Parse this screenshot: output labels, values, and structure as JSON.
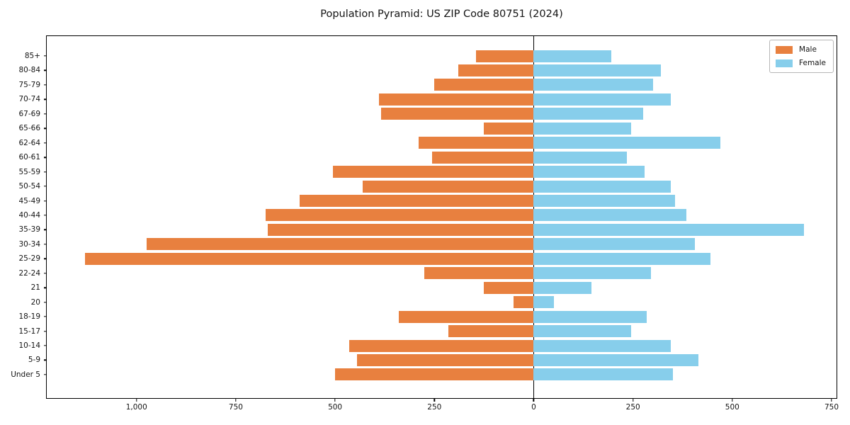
{
  "title": "Population Pyramid: US ZIP Code 80751 (2024)",
  "legend": {
    "male_label": "Male",
    "female_label": "Female"
  },
  "colors": {
    "male": "#e8803f",
    "female": "#87ceeb",
    "axis": "#000000",
    "background": "#ffffff"
  },
  "chart_data": {
    "type": "bar",
    "subtype": "population-pyramid",
    "orientation": "horizontal",
    "title": "Population Pyramid: US ZIP Code 80751 (2024)",
    "categories_top_to_bottom": [
      "85+",
      "80-84",
      "75-79",
      "70-74",
      "67-69",
      "65-66",
      "62-64",
      "60-61",
      "55-59",
      "50-54",
      "45-49",
      "40-44",
      "35-39",
      "30-34",
      "25-29",
      "22-24",
      "21",
      "20",
      "18-19",
      "15-17",
      "10-14",
      "5-9",
      "Under 5"
    ],
    "series": [
      {
        "name": "Male",
        "side": "left",
        "color": "#e8803f",
        "values": [
          145,
          190,
          250,
          390,
          385,
          125,
          290,
          255,
          505,
          430,
          590,
          675,
          670,
          975,
          1130,
          275,
          125,
          50,
          340,
          215,
          465,
          445,
          500
        ]
      },
      {
        "name": "Female",
        "side": "right",
        "color": "#87ceeb",
        "values": [
          195,
          320,
          300,
          345,
          275,
          245,
          470,
          235,
          280,
          345,
          355,
          385,
          680,
          405,
          445,
          295,
          145,
          50,
          285,
          245,
          345,
          415,
          350
        ]
      }
    ],
    "x_tick_values": [
      -1000,
      -750,
      -500,
      -250,
      0,
      250,
      500,
      750
    ],
    "x_tick_labels": [
      "1,000",
      "750",
      "500",
      "250",
      "0",
      "250",
      "500",
      "750"
    ],
    "xlim": [
      -1226,
      766
    ],
    "xlabel": "",
    "ylabel": "",
    "grid": false,
    "zero_line": true,
    "legend_position": "upper right"
  }
}
